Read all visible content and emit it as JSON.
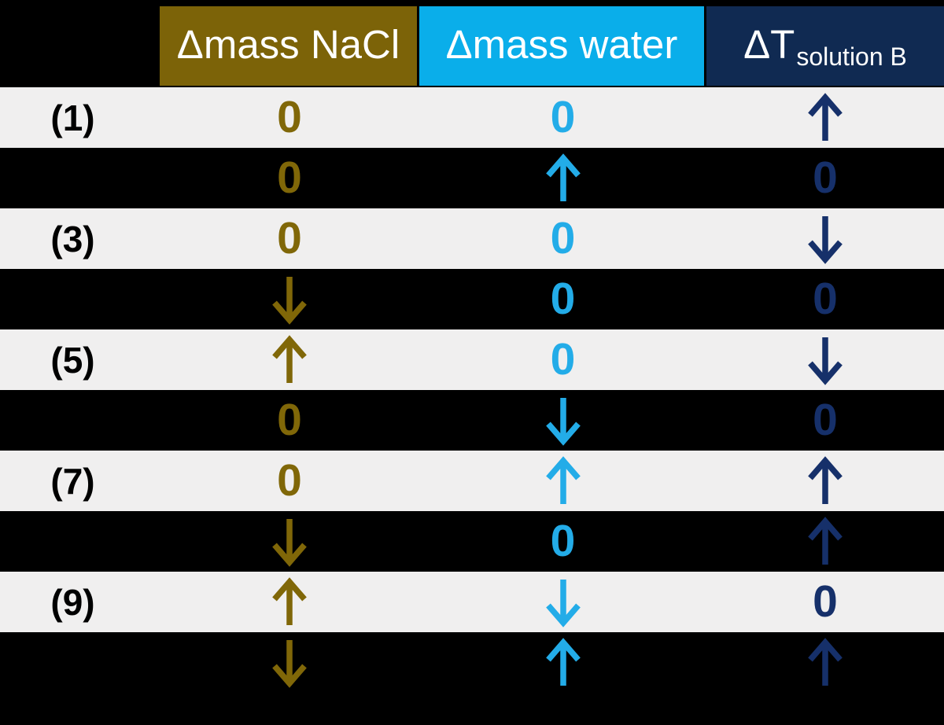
{
  "chart_data": {
    "type": "table",
    "columns": [
      {
        "id": "row",
        "label": "",
        "sub": ""
      },
      {
        "id": "nacl",
        "label": "Δmass NaCl",
        "sub": ""
      },
      {
        "id": "water",
        "label": "Δmass water",
        "sub": ""
      },
      {
        "id": "temp",
        "label": "ΔT",
        "sub": "solution B"
      }
    ],
    "rows": [
      {
        "label": "(1)",
        "values": [
          "0",
          "0",
          "↑"
        ]
      },
      {
        "label": "",
        "values": [
          "0",
          "↑",
          "0"
        ]
      },
      {
        "label": "(3)",
        "values": [
          "0",
          "0",
          "↓"
        ]
      },
      {
        "label": "",
        "values": [
          "↓",
          "0",
          "0"
        ]
      },
      {
        "label": "(5)",
        "values": [
          "↑",
          "0",
          "↓"
        ]
      },
      {
        "label": "",
        "values": [
          "0",
          "↓",
          "0"
        ]
      },
      {
        "label": "(7)",
        "values": [
          "0",
          "↑",
          "↑"
        ]
      },
      {
        "label": "",
        "values": [
          "↓",
          "0",
          "↑"
        ]
      },
      {
        "label": "(9)",
        "values": [
          "↑",
          "↓",
          "0"
        ]
      },
      {
        "label": "",
        "values": [
          "↓",
          "↑",
          "↑"
        ]
      }
    ]
  },
  "colors": {
    "background": "#000000",
    "stripe": "#F0EFEF",
    "header_text": "#FFFFFF",
    "label_text": "#000000",
    "nacl_bg": "#7C6308",
    "nacl_glyph": "#806708",
    "water_bg": "#0AAEEA",
    "water_glyph": "#23ACE8",
    "temp_bg": "#102A52",
    "temp_glyph": "#16306A"
  }
}
